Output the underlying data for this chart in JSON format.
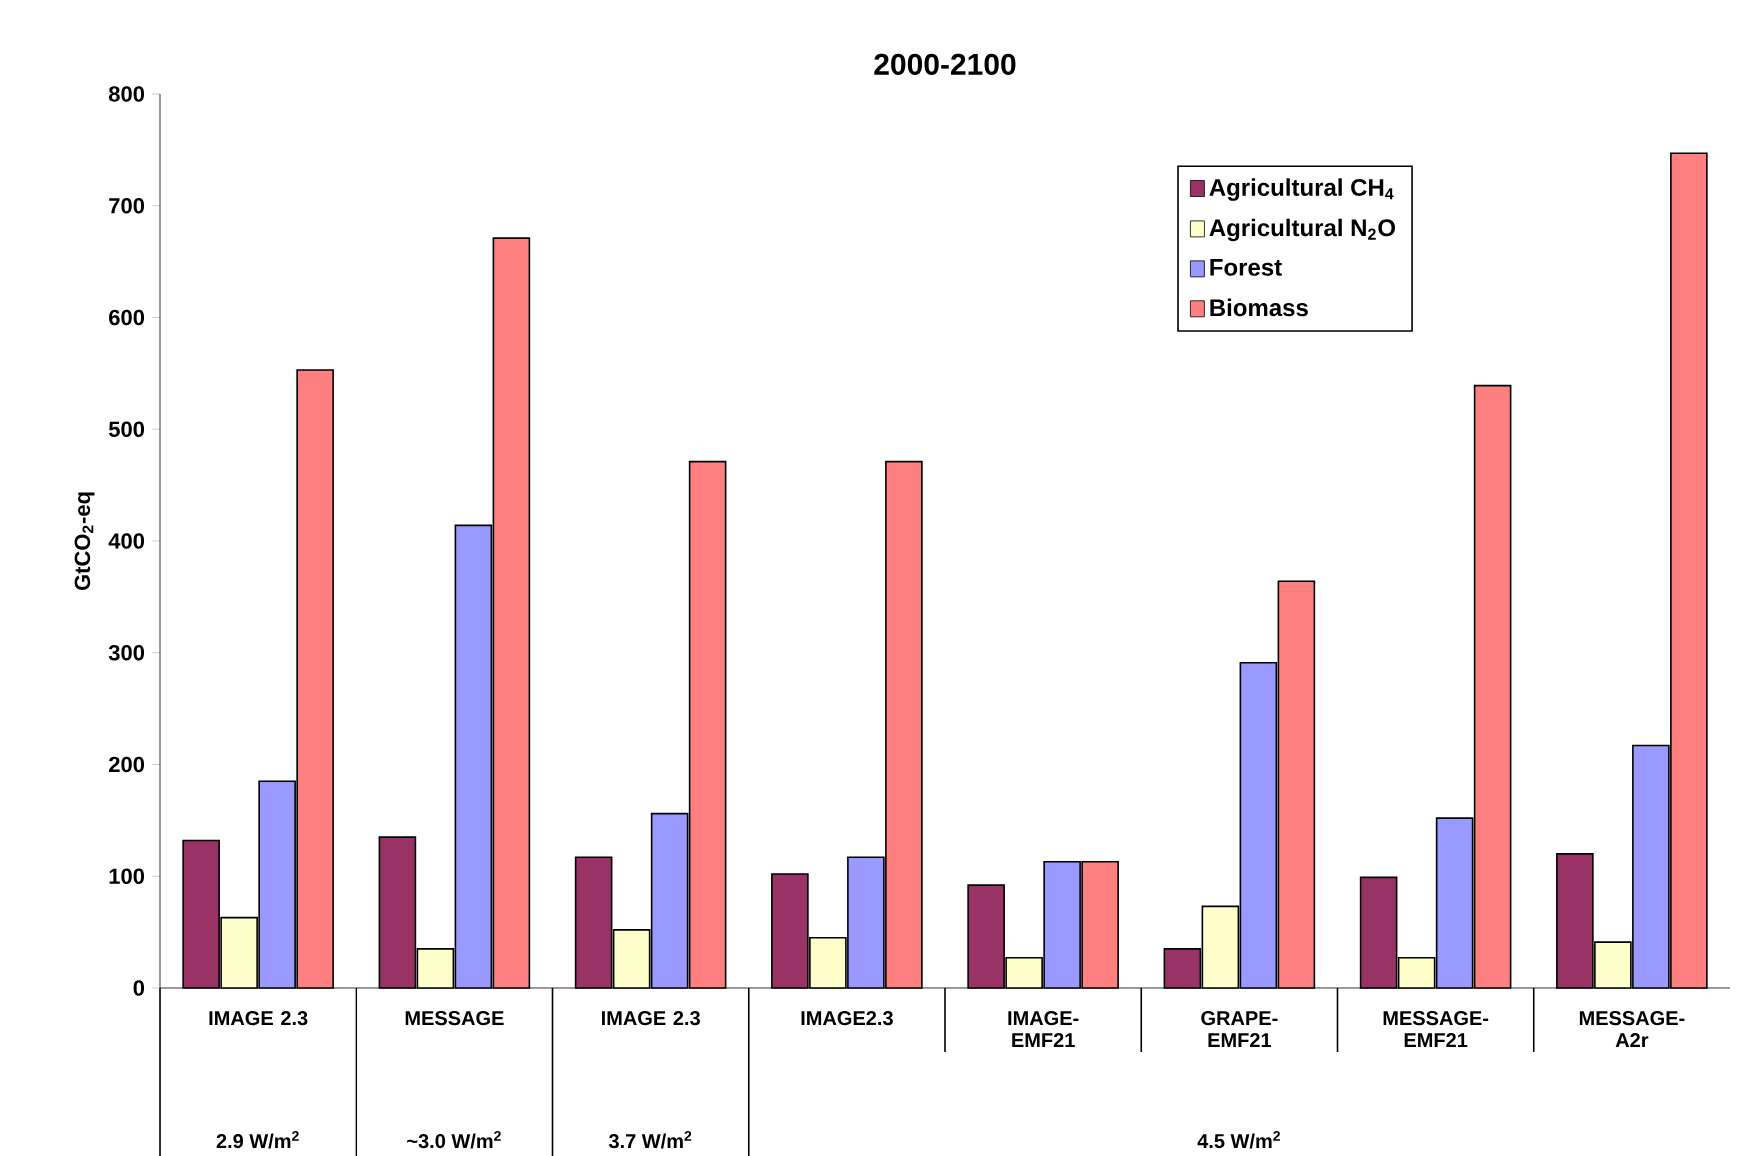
{
  "chart_data": {
    "type": "bar",
    "title": "2000-2100",
    "ylabel": "GtCO$_{2}$-eq",
    "categories": [
      "IMAGE 2.3",
      "MESSAGE",
      "IMAGE 2.3",
      "IMAGE2.3",
      "IMAGE-EMF21",
      "GRAPE-EMF21",
      "MESSAGE-EMF21",
      "MESSAGE-A2r"
    ],
    "series": [
      {
        "name": "Agricultural CH$_{4}$",
        "color": "#993366",
        "values": [
          132,
          135,
          117,
          102,
          92,
          35,
          99,
          120
        ]
      },
      {
        "name": "Agricultural N$_{2}$O",
        "color": "#ffffcc",
        "values": [
          63,
          35,
          52,
          45,
          27,
          73,
          27,
          41
        ]
      },
      {
        "name": "Forest",
        "color": "#9999ff",
        "values": [
          185,
          414,
          156,
          117,
          113,
          291,
          152,
          217
        ]
      },
      {
        "name": "Biomass",
        "color": "#ff8080",
        "values": [
          553,
          671,
          471,
          471,
          113,
          364,
          539,
          747
        ]
      }
    ],
    "ylim": [
      0,
      800
    ],
    "yticks": [
      0,
      100,
      200,
      300,
      400,
      500,
      600,
      700,
      800
    ],
    "legend": "top right",
    "annotations": [
      "2.9 W/m$^{2}$",
      "~3.0 W/m$^{2}$",
      "3.7 W/m$^{2}$",
      "4.5 W/m$^{2}$"
    ]
  }
}
